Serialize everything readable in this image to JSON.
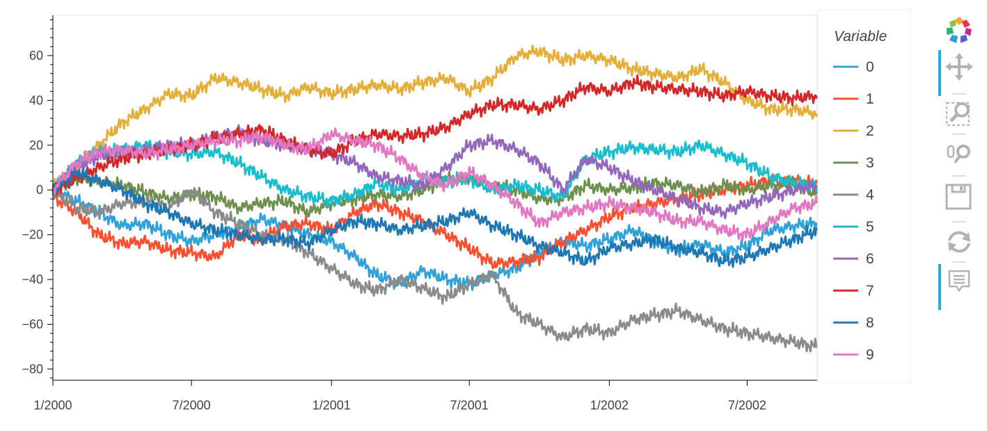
{
  "chart_data": {
    "type": "line",
    "title": "",
    "xlabel": "",
    "ylabel": "",
    "x_axis": {
      "type": "datetime",
      "range": [
        "2000-01-01",
        "2002-10-01"
      ],
      "ticks": [
        {
          "value": "2000-01-01",
          "label": "1/2000"
        },
        {
          "value": "2000-07-01",
          "label": "7/2000"
        },
        {
          "value": "2001-01-01",
          "label": "1/2001"
        },
        {
          "value": "2001-07-01",
          "label": "7/2001"
        },
        {
          "value": "2002-01-01",
          "label": "1/2002"
        },
        {
          "value": "2002-07-01",
          "label": "7/2002"
        }
      ]
    },
    "y_axis": {
      "range": [
        -85,
        78
      ],
      "ticks": [
        60,
        40,
        20,
        0,
        -20,
        -40,
        -60,
        -80
      ],
      "tick_labels": [
        "60",
        "40",
        "20",
        "0",
        "−20",
        "−40",
        "−60",
        "−80"
      ]
    },
    "grid": false,
    "legend": {
      "title": "Variable",
      "placement": "right"
    },
    "x": [
      "2000-01-01",
      "2000-02-01",
      "2000-03-01",
      "2000-04-01",
      "2000-05-01",
      "2000-06-01",
      "2000-07-01",
      "2000-08-01",
      "2000-09-01",
      "2000-10-01",
      "2000-11-01",
      "2000-12-01",
      "2001-01-01",
      "2001-02-01",
      "2001-03-01",
      "2001-04-01",
      "2001-05-01",
      "2001-06-01",
      "2001-07-01",
      "2001-08-01",
      "2001-09-01",
      "2001-10-01",
      "2001-11-01",
      "2001-12-01",
      "2002-01-01",
      "2002-02-01",
      "2002-03-01",
      "2002-04-01",
      "2002-05-01",
      "2002-06-01",
      "2002-07-01",
      "2002-08-01",
      "2002-09-01",
      "2002-10-01"
    ],
    "series": [
      {
        "name": "0",
        "color": "#30a2da",
        "values": [
          0,
          -5,
          -10,
          -16,
          -15,
          -20,
          -23,
          -20,
          -17,
          -13,
          -16,
          -20,
          -23,
          -30,
          -38,
          -42,
          -36,
          -40,
          -42,
          -38,
          -35,
          -28,
          -23,
          -25,
          -22,
          -18,
          -23,
          -27,
          -24,
          -28,
          -25,
          -18,
          -16,
          -15
        ]
      },
      {
        "name": "1",
        "color": "#fc4f30",
        "values": [
          -3,
          -10,
          -20,
          -24,
          -23,
          -27,
          -28,
          -30,
          -20,
          -22,
          -16,
          -15,
          -18,
          -10,
          -6,
          -10,
          -14,
          -20,
          -26,
          -33,
          -32,
          -30,
          -23,
          -18,
          -12,
          -8,
          -6,
          -4,
          -2,
          0,
          2,
          4,
          4,
          3
        ]
      },
      {
        "name": "2",
        "color": "#e5ae38",
        "values": [
          2,
          10,
          20,
          30,
          36,
          43,
          42,
          50,
          48,
          45,
          42,
          46,
          43,
          45,
          47,
          45,
          48,
          50,
          44,
          50,
          60,
          62,
          58,
          60,
          58,
          54,
          52,
          50,
          54,
          48,
          40,
          36,
          36,
          34
        ]
      },
      {
        "name": "3",
        "color": "#6d904f",
        "values": [
          0,
          5,
          4,
          2,
          -1,
          -4,
          -2,
          -3,
          -8,
          -6,
          -5,
          -10,
          -6,
          -4,
          -2,
          -3,
          0,
          5,
          5,
          2,
          0,
          -4,
          -4,
          2,
          0,
          1,
          3,
          2,
          -1,
          2,
          0,
          2,
          3,
          -2
        ]
      },
      {
        "name": "4",
        "color": "#8b8b8b",
        "values": [
          0,
          -8,
          -10,
          -6,
          -5,
          -8,
          0,
          -10,
          -15,
          -20,
          -22,
          -28,
          -35,
          -42,
          -45,
          -40,
          -44,
          -48,
          -42,
          -38,
          -55,
          -60,
          -66,
          -62,
          -64,
          -58,
          -56,
          -54,
          -58,
          -62,
          -64,
          -66,
          -68,
          -70
        ]
      },
      {
        "name": "5",
        "color": "#17becf",
        "values": [
          0,
          12,
          17,
          18,
          20,
          17,
          16,
          17,
          12,
          6,
          0,
          -3,
          -5,
          -2,
          3,
          0,
          5,
          4,
          5,
          0,
          2,
          0,
          -3,
          14,
          17,
          19,
          18,
          17,
          20,
          16,
          12,
          6,
          3,
          2
        ]
      },
      {
        "name": "6",
        "color": "#9467bd",
        "values": [
          0,
          10,
          15,
          16,
          18,
          20,
          20,
          24,
          26,
          22,
          20,
          18,
          16,
          12,
          6,
          4,
          2,
          10,
          20,
          22,
          18,
          12,
          0,
          14,
          10,
          4,
          0,
          -4,
          -8,
          -10,
          -6,
          -3,
          0,
          2
        ]
      },
      {
        "name": "7",
        "color": "#d62728",
        "values": [
          0,
          5,
          10,
          14,
          16,
          18,
          20,
          23,
          25,
          27,
          22,
          18,
          16,
          22,
          25,
          24,
          25,
          28,
          34,
          38,
          38,
          36,
          40,
          46,
          44,
          48,
          46,
          45,
          44,
          42,
          44,
          42,
          41,
          42
        ]
      },
      {
        "name": "8",
        "color": "#1f77b4",
        "values": [
          0,
          8,
          4,
          0,
          -6,
          -10,
          -15,
          -18,
          -20,
          -22,
          -22,
          -24,
          -18,
          -14,
          -15,
          -18,
          -16,
          -14,
          -10,
          -16,
          -20,
          -25,
          -28,
          -32,
          -26,
          -24,
          -22,
          -26,
          -28,
          -32,
          -30,
          -26,
          -22,
          -18
        ]
      },
      {
        "name": "9",
        "color": "#e377c2",
        "values": [
          0,
          12,
          17,
          18,
          16,
          18,
          20,
          22,
          22,
          24,
          20,
          18,
          25,
          22,
          20,
          14,
          6,
          2,
          8,
          2,
          -6,
          -15,
          -10,
          -8,
          -6,
          -8,
          -10,
          -14,
          -14,
          -18,
          -20,
          -14,
          -8,
          -6
        ]
      }
    ]
  },
  "toolbar": {
    "tools": [
      {
        "icon": "bokeh-logo-icon"
      },
      {
        "icon": "pan-icon",
        "active": true
      },
      {
        "icon": "box-zoom-icon"
      },
      {
        "icon": "wheel-zoom-icon"
      },
      {
        "icon": "save-icon"
      },
      {
        "icon": "reset-icon"
      },
      {
        "icon": "hover-icon",
        "active": true
      }
    ]
  }
}
